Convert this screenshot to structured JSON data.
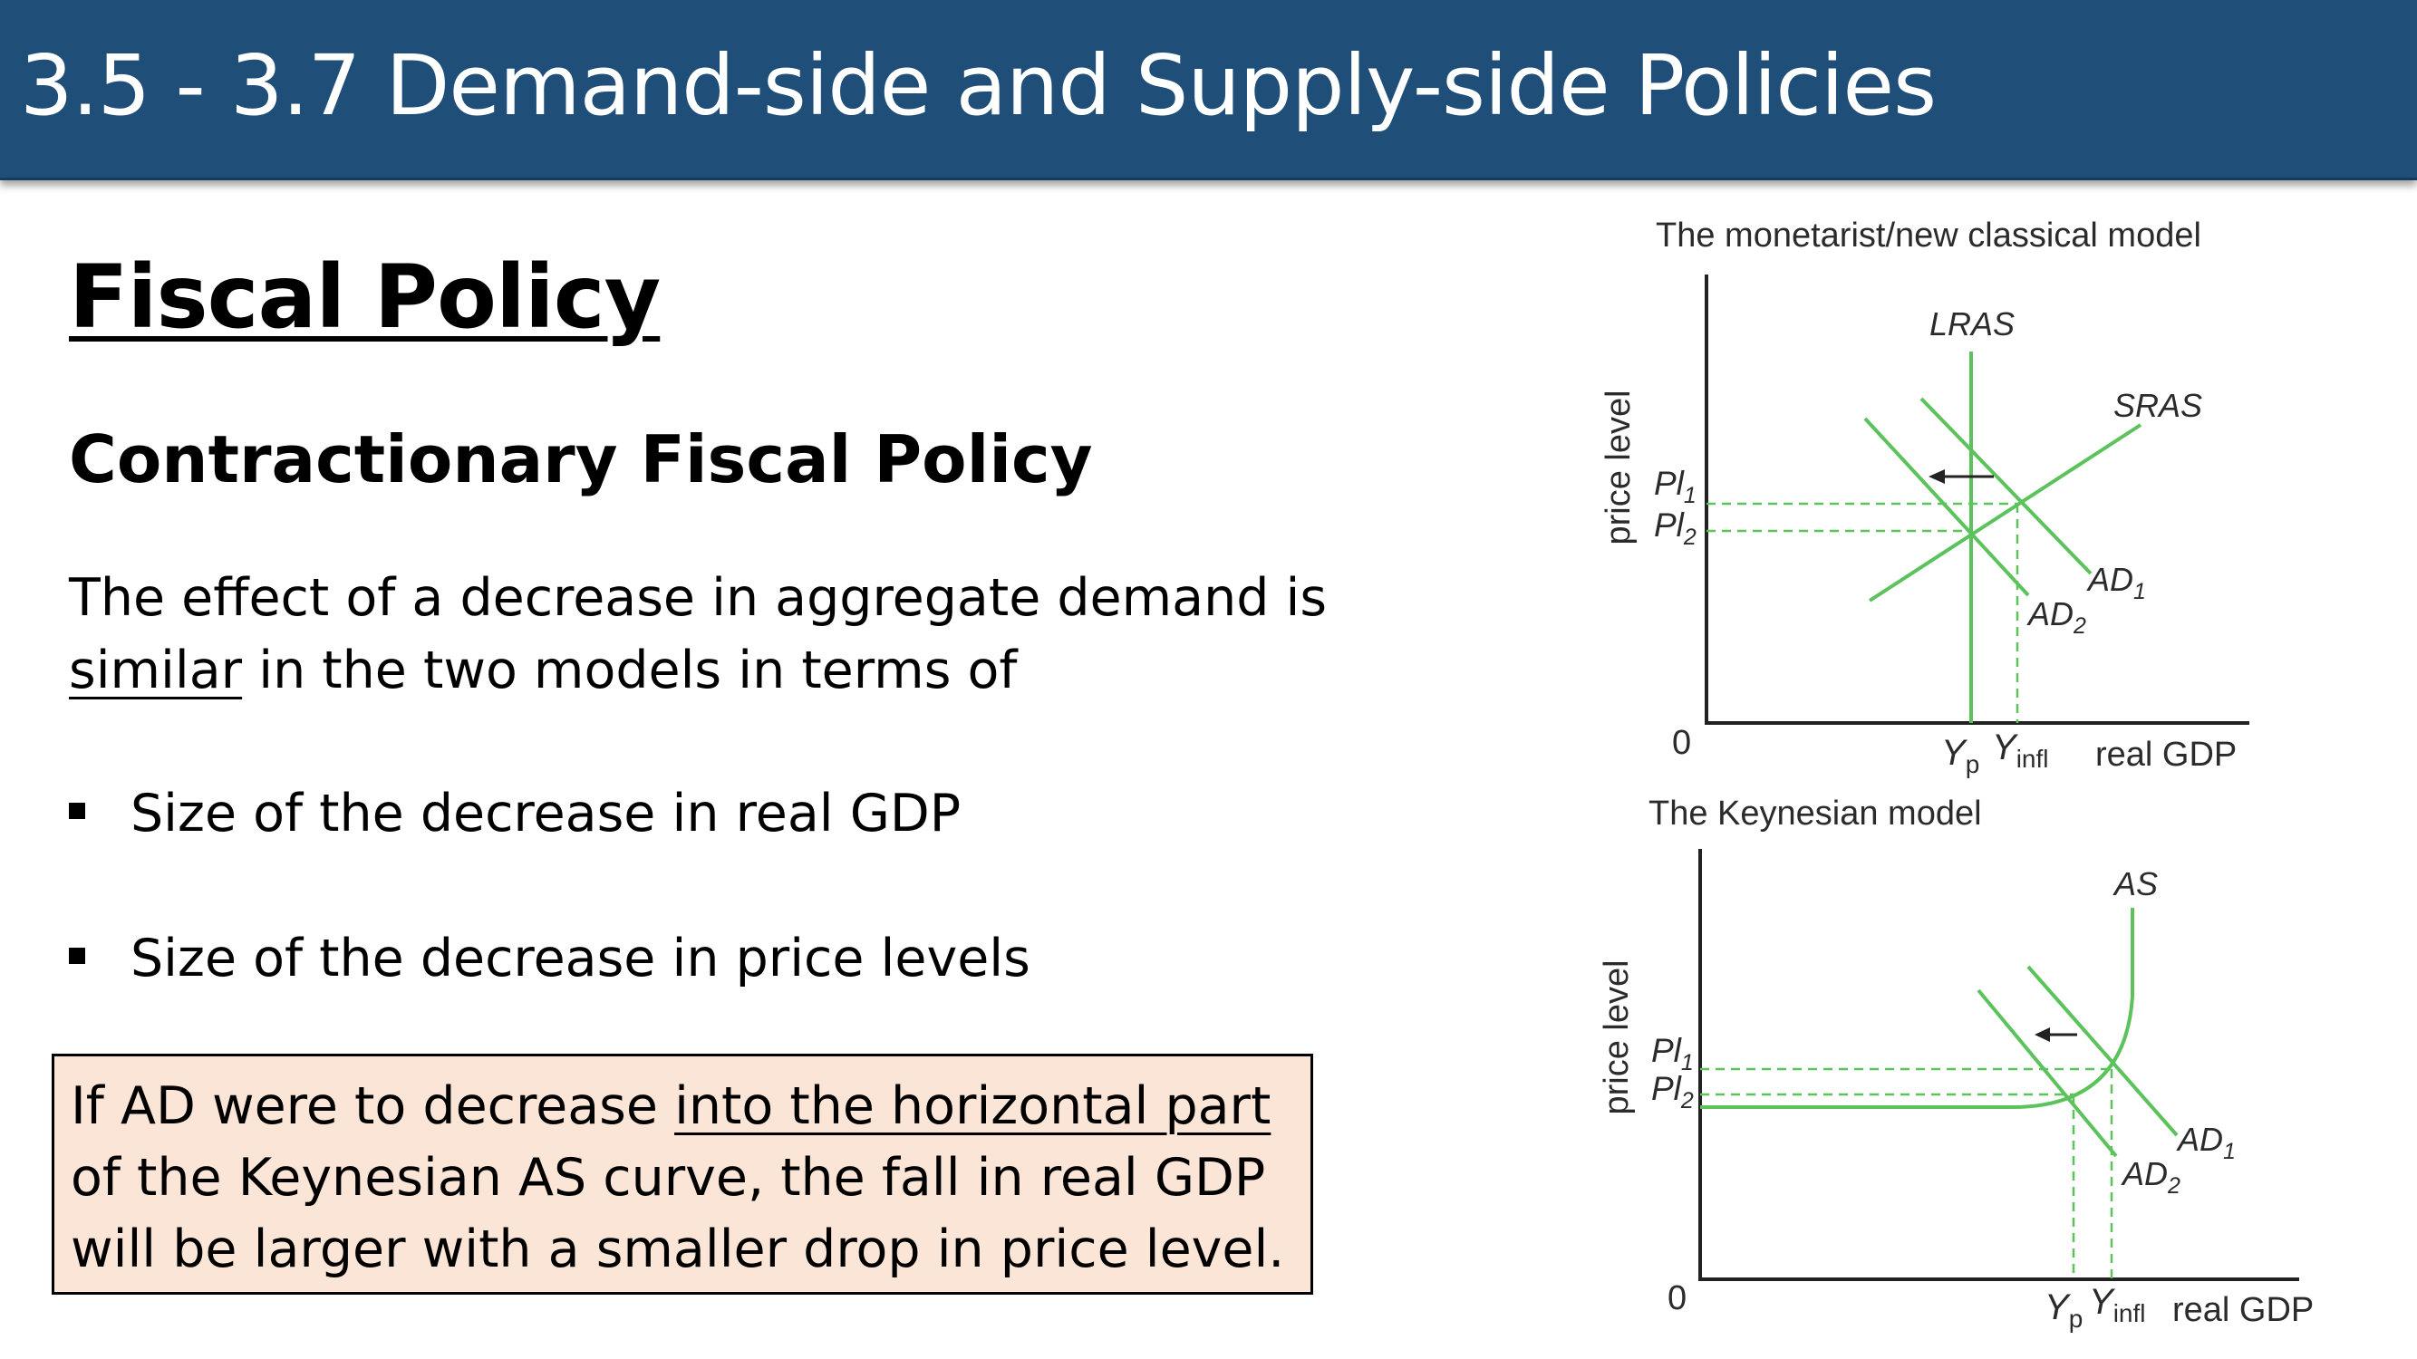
{
  "header": {
    "title": "3.5 - 3.7 Demand-side and Supply-side Policies"
  },
  "slide": {
    "heading": "Fiscal Policy",
    "subheading": "Contractionary Fiscal Policy",
    "intro_before": "The effect of a decrease in aggregate demand is",
    "intro_underlined": "similar",
    "intro_after": " in the two models in terms of",
    "bullets": [
      "Size of the decrease in real GDP",
      "Size of the decrease in price levels"
    ],
    "note": {
      "before": "If AD were to decrease ",
      "underlined": "into the horizontal part",
      "after": " of the Keynesian AS curve, the fall in real GDP will be larger with a smaller drop in price level."
    }
  },
  "diagrams": {
    "monetarist": {
      "title": "The monetarist/new classical model",
      "y_axis_label": "price level",
      "x_axis_label": "real GDP",
      "origin_label": "0",
      "lras_label": "LRAS",
      "sras_label": "SRAS",
      "ad1_label": "AD",
      "ad1_sub": "1",
      "ad2_label": "AD",
      "ad2_sub": "2",
      "pl1_label": "Pl",
      "pl1_sub": "1",
      "pl2_label": "Pl",
      "pl2_sub": "2",
      "yp_label": "Y",
      "yp_sub": "p",
      "yinfl_label": "Y",
      "yinfl_sub": "infl"
    },
    "keynesian": {
      "title": "The Keynesian model",
      "y_axis_label": "price level",
      "x_axis_label": "real GDP",
      "origin_label": "0",
      "as_label": "AS",
      "ad1_label": "AD",
      "ad1_sub": "1",
      "ad2_label": "AD",
      "ad2_sub": "2",
      "pl1_label": "Pl",
      "pl1_sub": "1",
      "pl2_label": "Pl",
      "pl2_sub": "2",
      "yp_label": "Y",
      "yp_sub": "p",
      "yinfl_label": "Y",
      "yinfl_sub": "infl"
    }
  },
  "colors": {
    "header_bg": "#1f4e79",
    "curve_green": "#5cc35c",
    "note_bg": "#fbe5d6",
    "diagram_text": "#2b2b2b"
  }
}
